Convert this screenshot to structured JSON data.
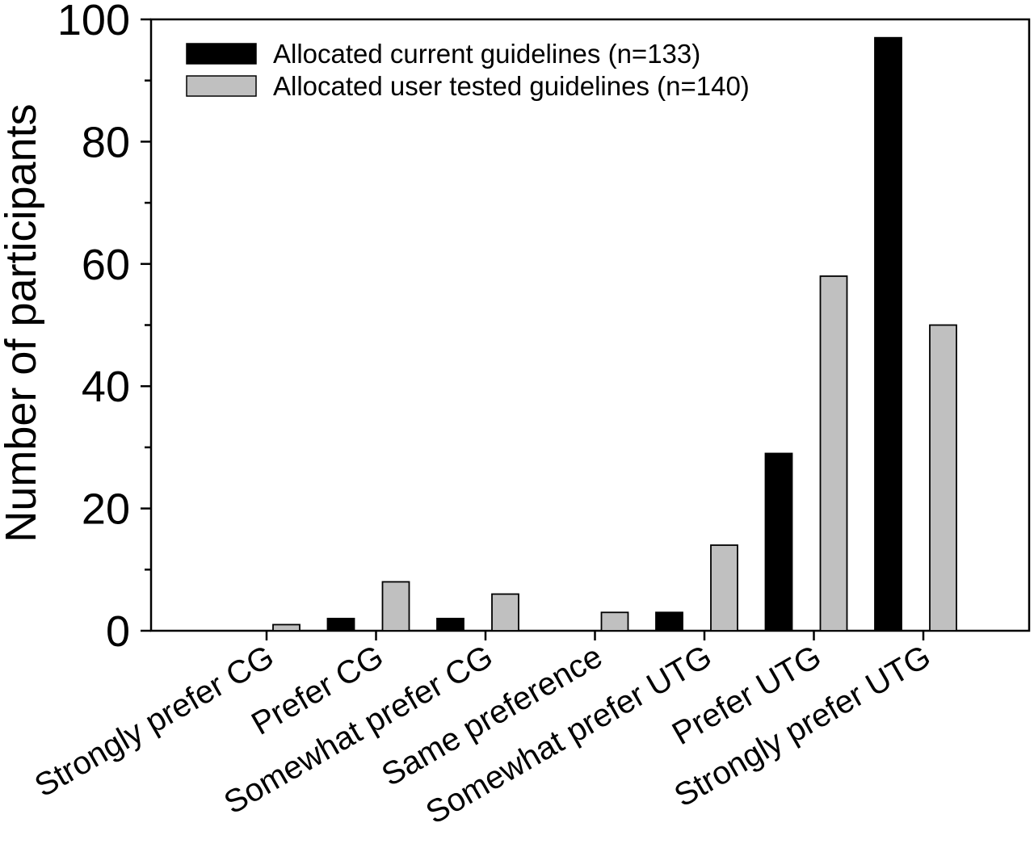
{
  "chart_data": {
    "type": "bar",
    "title": "",
    "xlabel": "",
    "ylabel": "Number of participants",
    "ylim": [
      0,
      100
    ],
    "yticks": [
      0,
      20,
      40,
      60,
      80,
      100
    ],
    "yminor_ticks": [
      10,
      30,
      50,
      70,
      90
    ],
    "grid": false,
    "legend_position": "top-left",
    "categories": [
      "Strongly prefer CG",
      "Prefer CG",
      "Somewhat prefer CG",
      "Same preference",
      "Somewhat prefer UTG",
      "Prefer UTG",
      "Strongly prefer UTG"
    ],
    "series": [
      {
        "name": "Allocated current guidelines (n=133)",
        "color": "#000000",
        "values": [
          0,
          2,
          2,
          0,
          3,
          29,
          97
        ]
      },
      {
        "name": "Allocated user tested guidelines (n=140)",
        "color": "#c0c0c0",
        "values": [
          1,
          8,
          6,
          3,
          14,
          58,
          50
        ]
      }
    ]
  }
}
